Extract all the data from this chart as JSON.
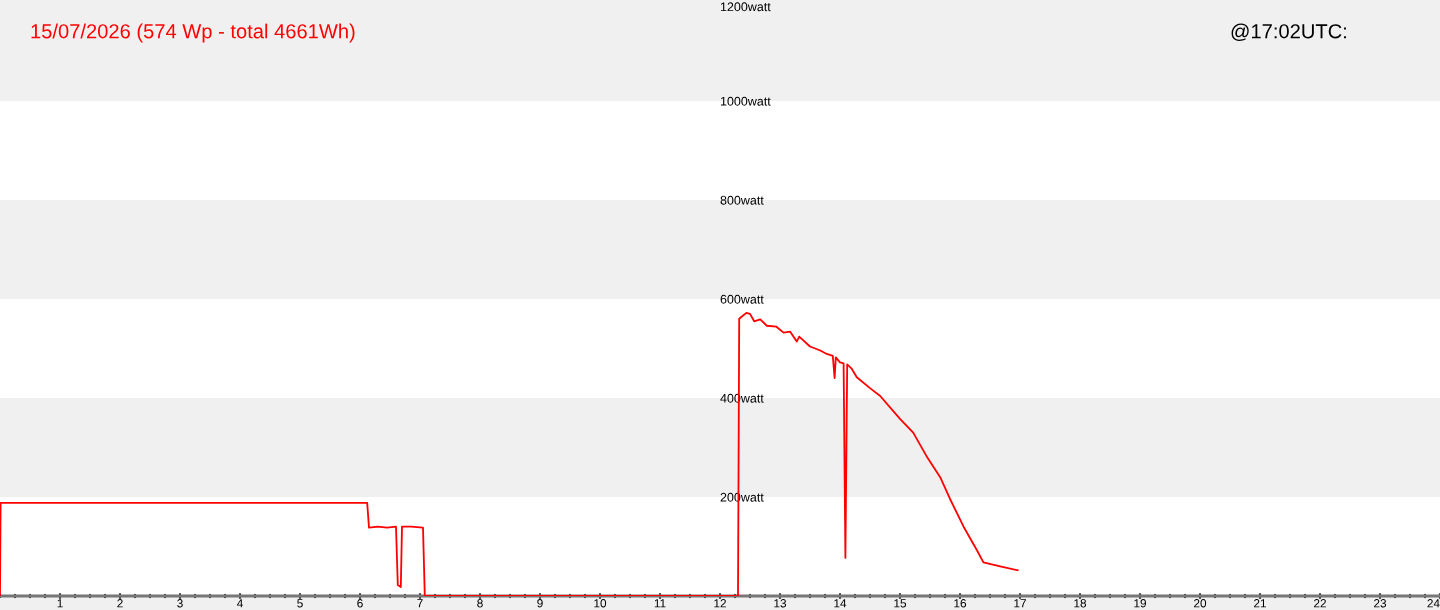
{
  "chart_data": {
    "type": "line",
    "title": "15/07/2026 (574 Wp - total 4661Wh)",
    "subtitle": "@17:02UTC:",
    "xlim": [
      0,
      24
    ],
    "xticks": [
      1,
      2,
      3,
      4,
      5,
      6,
      7,
      8,
      9,
      10,
      11,
      12,
      13,
      14,
      15,
      16,
      17,
      18,
      19,
      20,
      21,
      22,
      23,
      24
    ],
    "ylim": [
      0,
      1200
    ],
    "yticks": [
      {
        "value": 200,
        "label": "200watt"
      },
      {
        "value": 400,
        "label": "400watt"
      },
      {
        "value": 600,
        "label": "600watt"
      },
      {
        "value": 800,
        "label": "800watt"
      },
      {
        "value": 1000,
        "label": "1000watt"
      },
      {
        "value": 1200,
        "label": "1200watt"
      }
    ],
    "bands": [
      {
        "axis": "y",
        "from": 200,
        "to": 400,
        "color": "#f0f0f0"
      },
      {
        "axis": "y",
        "from": 600,
        "to": 800,
        "color": "#f0f0f0"
      },
      {
        "axis": "y",
        "from": 1000,
        "to": 1200,
        "color": "#f0f0f0"
      }
    ],
    "grid": false,
    "marker": "none",
    "line_style": "solid",
    "series": [
      {
        "color": "#ff0000",
        "x": [
          0,
          0.01,
          6.12,
          6.15,
          6.3,
          6.45,
          6.6,
          6.63,
          6.68,
          6.7,
          6.85,
          7.05,
          7.08,
          12.3,
          12.32,
          12.36,
          12.44,
          12.5,
          12.57,
          12.67,
          12.78,
          12.94,
          13.06,
          13.17,
          13.28,
          13.32,
          13.5,
          13.67,
          13.78,
          13.88,
          13.91,
          13.93,
          14.0,
          14.06,
          14.09,
          14.12,
          14.19,
          14.28,
          14.5,
          14.67,
          15.0,
          15.22,
          15.44,
          15.67,
          15.83,
          16.06,
          16.28,
          16.39,
          16.67,
          16.96
        ],
        "values": [
          0,
          188,
          188,
          138,
          140,
          138,
          140,
          22,
          18,
          140,
          140,
          138,
          0,
          0,
          560,
          564,
          572,
          570,
          555,
          559,
          546,
          544,
          532,
          534,
          514,
          524,
          504,
          496,
          489,
          485,
          440,
          482,
          472,
          470,
          77,
          468,
          460,
          442,
          420,
          404,
          358,
          330,
          283,
          240,
          197,
          140,
          93,
          68,
          60,
          52
        ]
      }
    ]
  }
}
